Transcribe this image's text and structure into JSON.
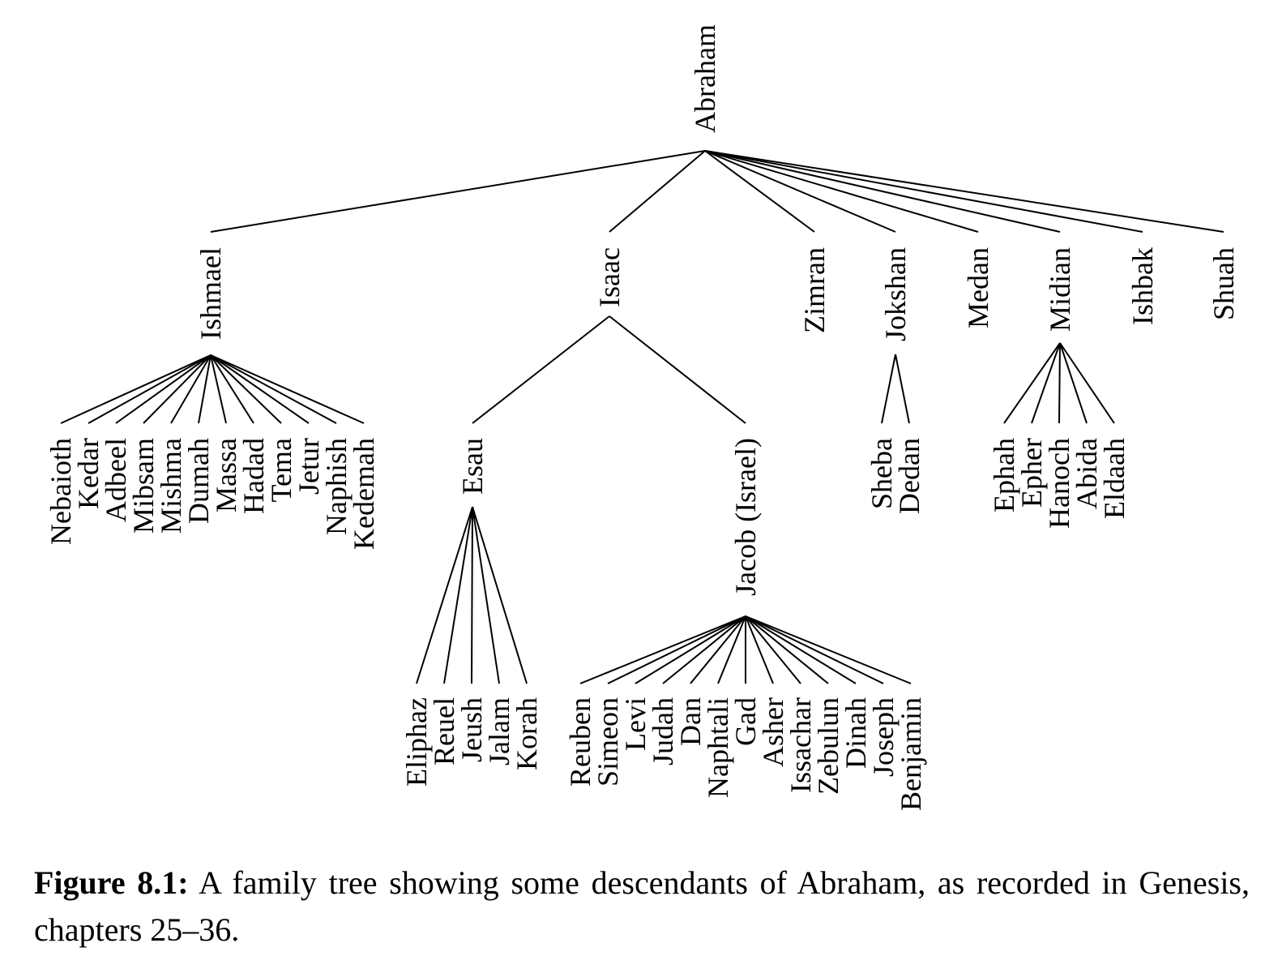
{
  "tree": {
    "root": "Abraham",
    "children": [
      {
        "name": "Ishmael",
        "children": [
          "Nebaioth",
          "Kedar",
          "Adbeel",
          "Mibsam",
          "Mishma",
          "Dumah",
          "Massa",
          "Hadad",
          "Tema",
          "Jetur",
          "Naphish",
          "Kedemah"
        ]
      },
      {
        "name": "Isaac",
        "children": [
          {
            "name": "Esau",
            "children": [
              "Eliphaz",
              "Reuel",
              "Jeush",
              "Jalam",
              "Korah"
            ]
          },
          {
            "name": "Jacob (Israel)",
            "children": [
              "Reuben",
              "Simeon",
              "Levi",
              "Judah",
              "Dan",
              "Naphtali",
              "Gad",
              "Asher",
              "Issachar",
              "Zebulun",
              "Dinah",
              "Joseph",
              "Benjamin"
            ]
          }
        ]
      },
      {
        "name": "Zimran",
        "children": []
      },
      {
        "name": "Jokshan",
        "children": [
          "Sheba",
          "Dedan"
        ]
      },
      {
        "name": "Medan",
        "children": []
      },
      {
        "name": "Midian",
        "children": [
          "Ephah",
          "Epher",
          "Hanoch",
          "Abida",
          "Eldaah"
        ]
      },
      {
        "name": "Ishbak",
        "children": []
      },
      {
        "name": "Shuah",
        "children": []
      }
    ]
  },
  "caption": {
    "label": "Figure 8.1:",
    "text": " A family tree showing some descendants of Abraham, as recorded in Genesis, chapters 25–36."
  }
}
